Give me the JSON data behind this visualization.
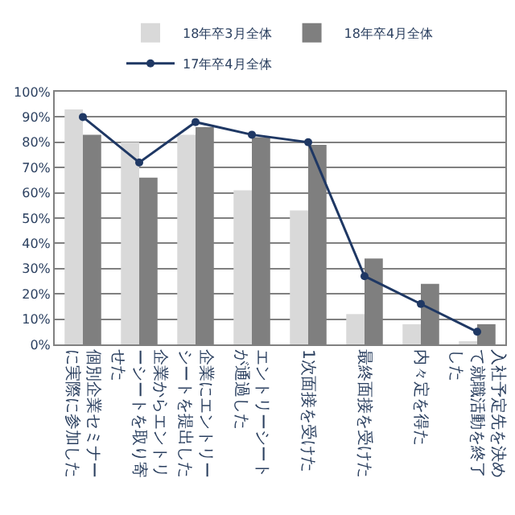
{
  "chart_data": {
    "type": "bar",
    "categories": [
      "個別企業セミナーに実際に参加した",
      "企業からエントリーシートを取り寄せた",
      "企業にエントリーシートを提出した",
      "エントリーシートが通過した",
      "1次面接を受けた",
      "最終面接を受けた",
      "内々定を得た",
      "入社予定先を決めて就職活動を終了した"
    ],
    "series": [
      {
        "name": "18年卒3月全体",
        "color": "#d9d9d9",
        "values": [
          93,
          80,
          83,
          61,
          53,
          12,
          8,
          1
        ]
      },
      {
        "name": "18年卒4月全体",
        "color": "#7f7f7f",
        "values": [
          83,
          66,
          86,
          82,
          79,
          34,
          24,
          8
        ]
      },
      {
        "name": "17年卒4月全体",
        "type": "line",
        "color": "#1f3864",
        "marker": "circle",
        "values": [
          90,
          72,
          88,
          83,
          80,
          27,
          16,
          5
        ]
      }
    ],
    "ylim": [
      0,
      100
    ],
    "yticks": [
      {
        "value": 0,
        "label": "0%"
      },
      {
        "value": 10,
        "label": "10%"
      },
      {
        "value": 20,
        "label": "20%"
      },
      {
        "value": 30,
        "label": "30%"
      },
      {
        "value": 40,
        "label": "40%"
      },
      {
        "value": 50,
        "label": "50%"
      },
      {
        "value": 60,
        "label": "60%"
      },
      {
        "value": 70,
        "label": "70%"
      },
      {
        "value": 80,
        "label": "80%"
      },
      {
        "value": 90,
        "label": "90%"
      },
      {
        "value": 100,
        "label": "100%"
      }
    ],
    "grid": "y",
    "legend": "top"
  }
}
